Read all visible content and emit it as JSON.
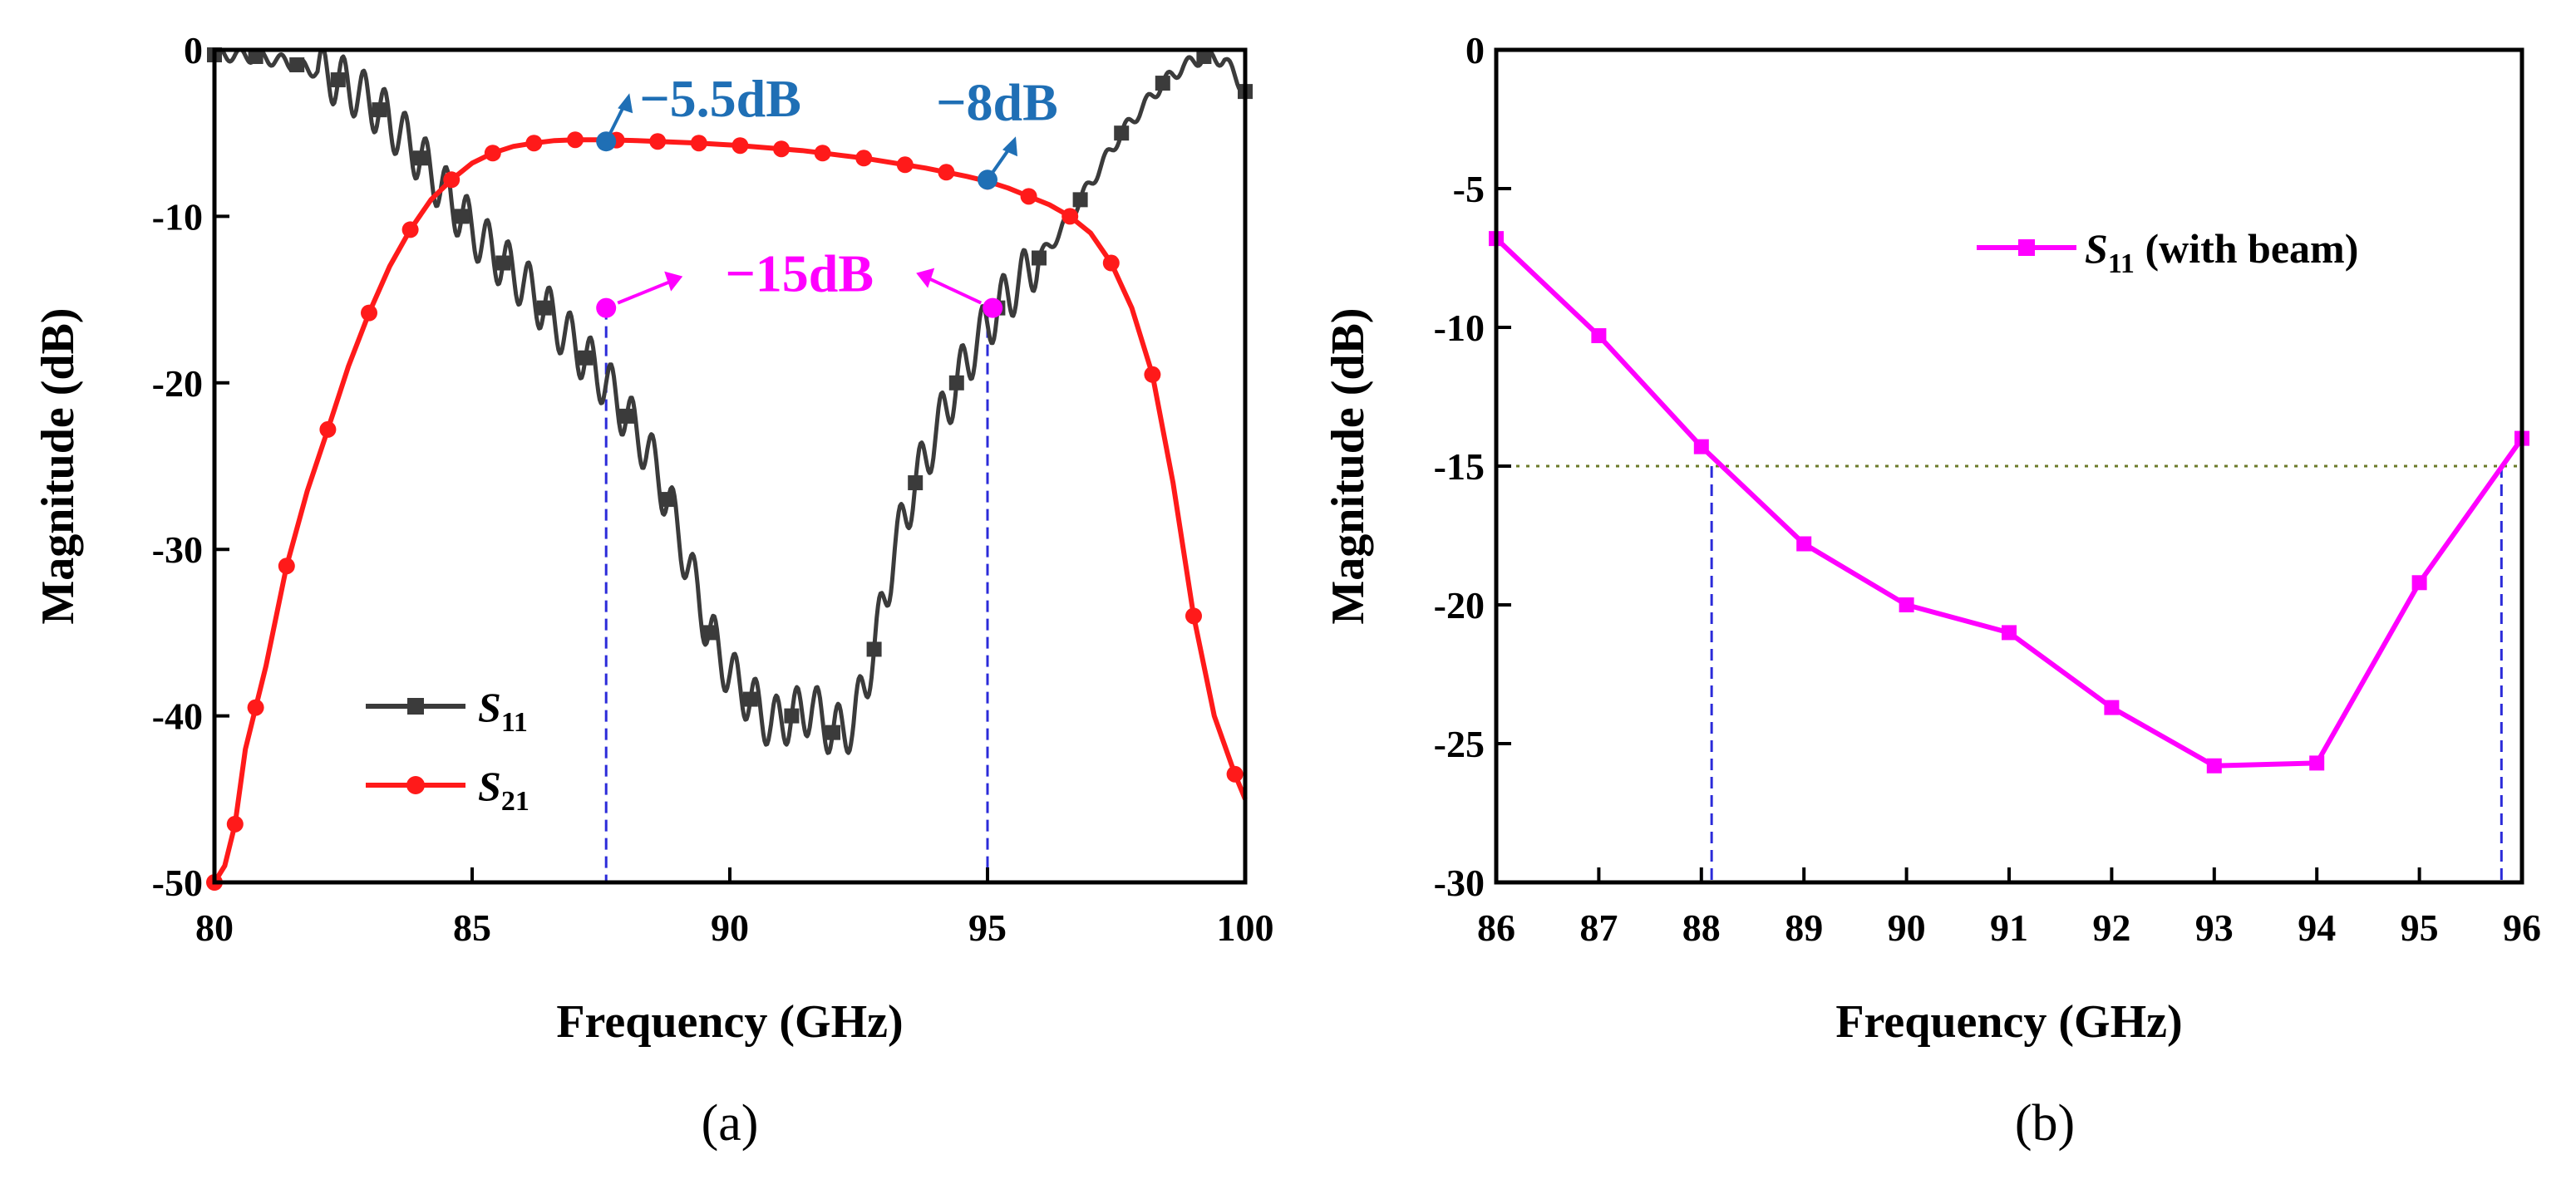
{
  "chart_data": [
    {
      "type": "line",
      "caption": "(a)",
      "xlabel": "Frequency (GHz)",
      "ylabel": "Magnitude (dB)",
      "xlim": [
        80,
        100
      ],
      "ylim": [
        -50,
        0
      ],
      "xticks": [
        "80",
        "85",
        "90",
        "95",
        "100"
      ],
      "yticks": [
        "0",
        "-10",
        "-20",
        "-30",
        "-40",
        "-50"
      ],
      "series": [
        {
          "name": "S11",
          "label_main": "S",
          "label_sub": "11",
          "color": "#3b3b3b",
          "marker": "square",
          "x": [
            80.0,
            80.4,
            80.8,
            81.2,
            81.6,
            82.0,
            82.4,
            82.8,
            83.2,
            83.6,
            84.0,
            84.4,
            84.8,
            85.2,
            85.6,
            86.0,
            86.4,
            86.8,
            87.2,
            87.6,
            88.0,
            88.4,
            88.8,
            89.2,
            89.6,
            90.0,
            90.4,
            90.8,
            91.2,
            91.6,
            92.0,
            92.4,
            92.8,
            93.2,
            93.6,
            94.0,
            94.4,
            94.8,
            95.2,
            95.6,
            96.0,
            96.4,
            96.8,
            97.2,
            97.6,
            98.0,
            98.4,
            98.8,
            99.2,
            99.6,
            100.0
          ],
          "values": [
            -0.3,
            -0.3,
            -0.4,
            -0.6,
            -0.9,
            -1.3,
            -1.8,
            -2.6,
            -3.6,
            -5.0,
            -6.5,
            -8.2,
            -10.0,
            -11.5,
            -12.8,
            -14.0,
            -15.5,
            -17.0,
            -18.5,
            -20.0,
            -22.0,
            -24.0,
            -27.0,
            -31.0,
            -35.0,
            -37.5,
            -39.0,
            -40.5,
            -40.0,
            -39.5,
            -41.0,
            -40.5,
            -36.0,
            -30.0,
            -26.0,
            -23.0,
            -20.0,
            -17.5,
            -15.5,
            -14.0,
            -12.5,
            -11.0,
            -9.0,
            -7.0,
            -5.0,
            -3.5,
            -2.0,
            -1.0,
            -0.4,
            -0.6,
            -2.5
          ]
        },
        {
          "name": "S21",
          "label_main": "S",
          "label_sub": "21",
          "color": "#ff1a1a",
          "marker": "circle",
          "x": [
            80.0,
            80.2,
            80.4,
            80.6,
            80.8,
            81.0,
            81.4,
            81.8,
            82.2,
            82.6,
            83.0,
            83.4,
            83.8,
            84.2,
            84.6,
            85.0,
            85.4,
            85.8,
            86.2,
            86.6,
            87.0,
            87.4,
            87.8,
            88.2,
            88.6,
            89.0,
            89.4,
            89.8,
            90.2,
            90.6,
            91.0,
            91.4,
            91.8,
            92.2,
            92.6,
            93.0,
            93.4,
            93.8,
            94.2,
            94.6,
            95.0,
            95.4,
            95.8,
            96.2,
            96.6,
            97.0,
            97.4,
            97.8,
            98.2,
            98.6,
            99.0,
            99.4,
            99.8,
            100.0
          ],
          "values": [
            -50.0,
            -49.0,
            -46.5,
            -42.0,
            -39.5,
            -37.0,
            -31.0,
            -26.5,
            -22.8,
            -19.0,
            -15.8,
            -13.0,
            -10.8,
            -9.0,
            -7.8,
            -6.8,
            -6.2,
            -5.8,
            -5.6,
            -5.45,
            -5.4,
            -5.4,
            -5.42,
            -5.45,
            -5.5,
            -5.55,
            -5.6,
            -5.68,
            -5.75,
            -5.85,
            -5.95,
            -6.05,
            -6.2,
            -6.35,
            -6.5,
            -6.7,
            -6.9,
            -7.1,
            -7.35,
            -7.6,
            -7.9,
            -8.3,
            -8.8,
            -9.3,
            -10.0,
            -11.0,
            -12.8,
            -15.5,
            -19.5,
            -26.0,
            -34.0,
            -40.0,
            -43.5,
            -45.0
          ]
        }
      ],
      "annotations": [
        {
          "text": "−5.5dB",
          "x": 87.6,
          "y": -5.5,
          "color": "#1f6fb5"
        },
        {
          "text": "−8dB",
          "x": 95.0,
          "y": -7.8,
          "color": "#1f6fb5"
        },
        {
          "text": "−15dB",
          "x_left": 87.6,
          "x_right": 95.1,
          "y": -15.5,
          "color": "#ff00ff"
        }
      ],
      "vlines": [
        87.6,
        95.0
      ],
      "vline_color": "#2b2bd9",
      "legend_position": "lower-left"
    },
    {
      "type": "line",
      "caption": "(b)",
      "xlabel": "Frequency (GHz)",
      "ylabel": "Magnitude (dB)",
      "xlim": [
        86,
        96
      ],
      "ylim": [
        -30,
        0
      ],
      "xticks": [
        "86",
        "87",
        "88",
        "89",
        "90",
        "91",
        "92",
        "93",
        "94",
        "95",
        "96"
      ],
      "yticks": [
        "0",
        "-5",
        "-10",
        "-15",
        "-20",
        "-25",
        "-30"
      ],
      "series": [
        {
          "name": "S11 (with beam)",
          "label_main": "S",
          "label_sub": "11",
          "label_rest": " (with beam)",
          "color": "#ff00ff",
          "marker": "square",
          "x": [
            86,
            87,
            88,
            89,
            90,
            91,
            92,
            93,
            94,
            95,
            96
          ],
          "values": [
            -6.8,
            -10.3,
            -14.3,
            -17.8,
            -20.0,
            -21.0,
            -23.7,
            -25.8,
            -25.7,
            -19.2,
            -14.0
          ]
        }
      ],
      "hline": -15,
      "hline_color": "#6b7a2a",
      "vlines": [
        88.1,
        95.8
      ],
      "vline_color": "#2b2bd9",
      "legend_position": "upper-right"
    }
  ]
}
